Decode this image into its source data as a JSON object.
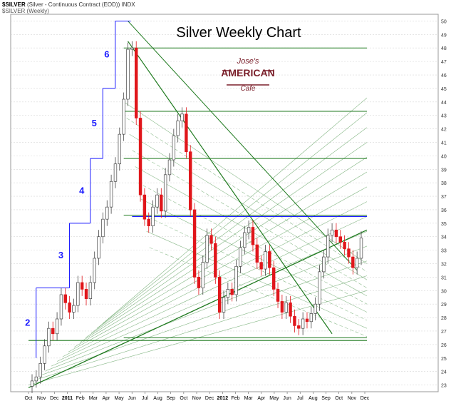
{
  "header": {
    "symbol": "$SILVER",
    "description": "(Silver - Continuous Contract (EOD))",
    "exchange": "INDX",
    "sub_label": "$SILVER (Weekly)"
  },
  "logo": {
    "line1": "Jose's",
    "line2": "AMERICAN",
    "line3": "Cafe"
  },
  "colors": {
    "up": "#ffffff",
    "down": "#e0161b",
    "wave": "#1a1aff",
    "trend": "#1f7a1f",
    "grid": "#d8d8d8"
  },
  "chart_data": {
    "type": "candlestick",
    "title": "Silver Weekly Chart",
    "period": "Weekly",
    "ylim": [
      22.5,
      50.5
    ],
    "y_ticks": [
      23,
      24,
      25,
      26,
      27,
      28,
      29,
      30,
      31,
      32,
      33,
      34,
      35,
      36,
      37,
      38,
      39,
      40,
      41,
      42,
      43,
      44,
      45,
      46,
      47,
      48,
      49,
      50
    ],
    "x_ticks": [
      "Oct",
      "Nov",
      "Dec",
      "2011",
      "Feb",
      "Mar",
      "Apr",
      "May",
      "Jun",
      "Jul",
      "Aug",
      "Sep",
      "Oct",
      "Nov",
      "Dec",
      "2012",
      "Feb",
      "Mar",
      "Apr",
      "May",
      "Jun",
      "Jul",
      "Aug",
      "Sep",
      "Oct",
      "Nov",
      "Dec"
    ],
    "wave_labels": [
      "2",
      "3",
      "4",
      "5",
      "6"
    ],
    "wave_steps": [
      {
        "label": "2",
        "level": 30.2
      },
      {
        "label": "3",
        "level": 35.0
      },
      {
        "label": "4",
        "level": 39.8
      },
      {
        "label": "5",
        "level": 45.0
      },
      {
        "label": "6",
        "level": 50.0
      }
    ],
    "weekly_closes": [
      23.3,
      23.6,
      24.6,
      25.9,
      27.2,
      26.8,
      27.9,
      29.7,
      29.1,
      28.4,
      28.9,
      30.6,
      30.1,
      29.4,
      30.6,
      32.4,
      34.0,
      35.3,
      36.2,
      38.1,
      39.4,
      41.6,
      44.2,
      47.9,
      48.0,
      42.8,
      37.1,
      35.3,
      34.8,
      36.2,
      37.1,
      35.9,
      38.6,
      39.7,
      41.5,
      42.6,
      43.1,
      40.3,
      36.0,
      31.0,
      30.2,
      32.1,
      34.1,
      33.5,
      31.0,
      28.4,
      29.5,
      30.1,
      29.7,
      31.8,
      33.2,
      34.3,
      34.7,
      33.4,
      32.1,
      31.6,
      32.9,
      31.7,
      30.1,
      29.2,
      28.4,
      29.1,
      28.1,
      27.4,
      27.2,
      27.9,
      27.7,
      28.3,
      29.0,
      31.4,
      32.5,
      34.1,
      34.5,
      34.0,
      33.6,
      33.1,
      32.5,
      31.7,
      32.4,
      33.9
    ]
  }
}
